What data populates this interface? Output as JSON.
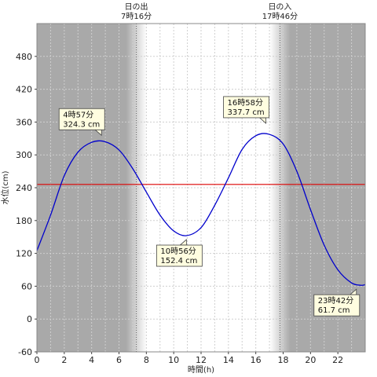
{
  "chart_data": {
    "type": "line",
    "title": "",
    "xlabel": "時間(h)",
    "ylabel": "水位(cm)",
    "xlim": [
      0,
      24
    ],
    "ylim": [
      -60,
      540
    ],
    "xticks": [
      0,
      2,
      4,
      6,
      8,
      10,
      12,
      14,
      16,
      18,
      20,
      22
    ],
    "yticks": [
      -60,
      0,
      60,
      120,
      180,
      240,
      300,
      360,
      420,
      480
    ],
    "grid": true,
    "sunrise": {
      "label": "日の出",
      "time_label": "7時16分",
      "hour": 7.267
    },
    "sunset": {
      "label": "日の入",
      "time_label": "17時46分",
      "hour": 17.767
    },
    "night_color": "#a9a9a9",
    "day_color": "#ffffff",
    "series": [
      {
        "color": "#0000cc",
        "x": [
          0,
          1,
          2,
          3,
          4,
          4.95,
          6,
          7,
          8,
          9,
          10,
          10.93,
          12,
          13,
          14,
          15,
          16,
          16.97,
          18,
          19,
          20,
          21,
          22,
          23,
          23.7,
          24
        ],
        "values": [
          125,
          190,
          262,
          305,
          323,
          324.3,
          309,
          275,
          232,
          190,
          161,
          152.4,
          167,
          208,
          258,
          310,
          335,
          337.7,
          320,
          270,
          200,
          135,
          90,
          66,
          61.7,
          63
        ]
      }
    ],
    "reference_line": {
      "value": 246,
      "color": "#dd0000"
    },
    "annotations": [
      {
        "time": "4時57分",
        "value": "324.3 cm",
        "x": 4.95,
        "y": 324.3
      },
      {
        "time": "10時56分",
        "value": "152.4 cm",
        "x": 10.93,
        "y": 152.4
      },
      {
        "time": "16時58分",
        "value": "337.7 cm",
        "x": 16.97,
        "y": 337.7
      },
      {
        "time": "23時42分",
        "value": "61.7 cm",
        "x": 23.7,
        "y": 61.7
      }
    ]
  }
}
